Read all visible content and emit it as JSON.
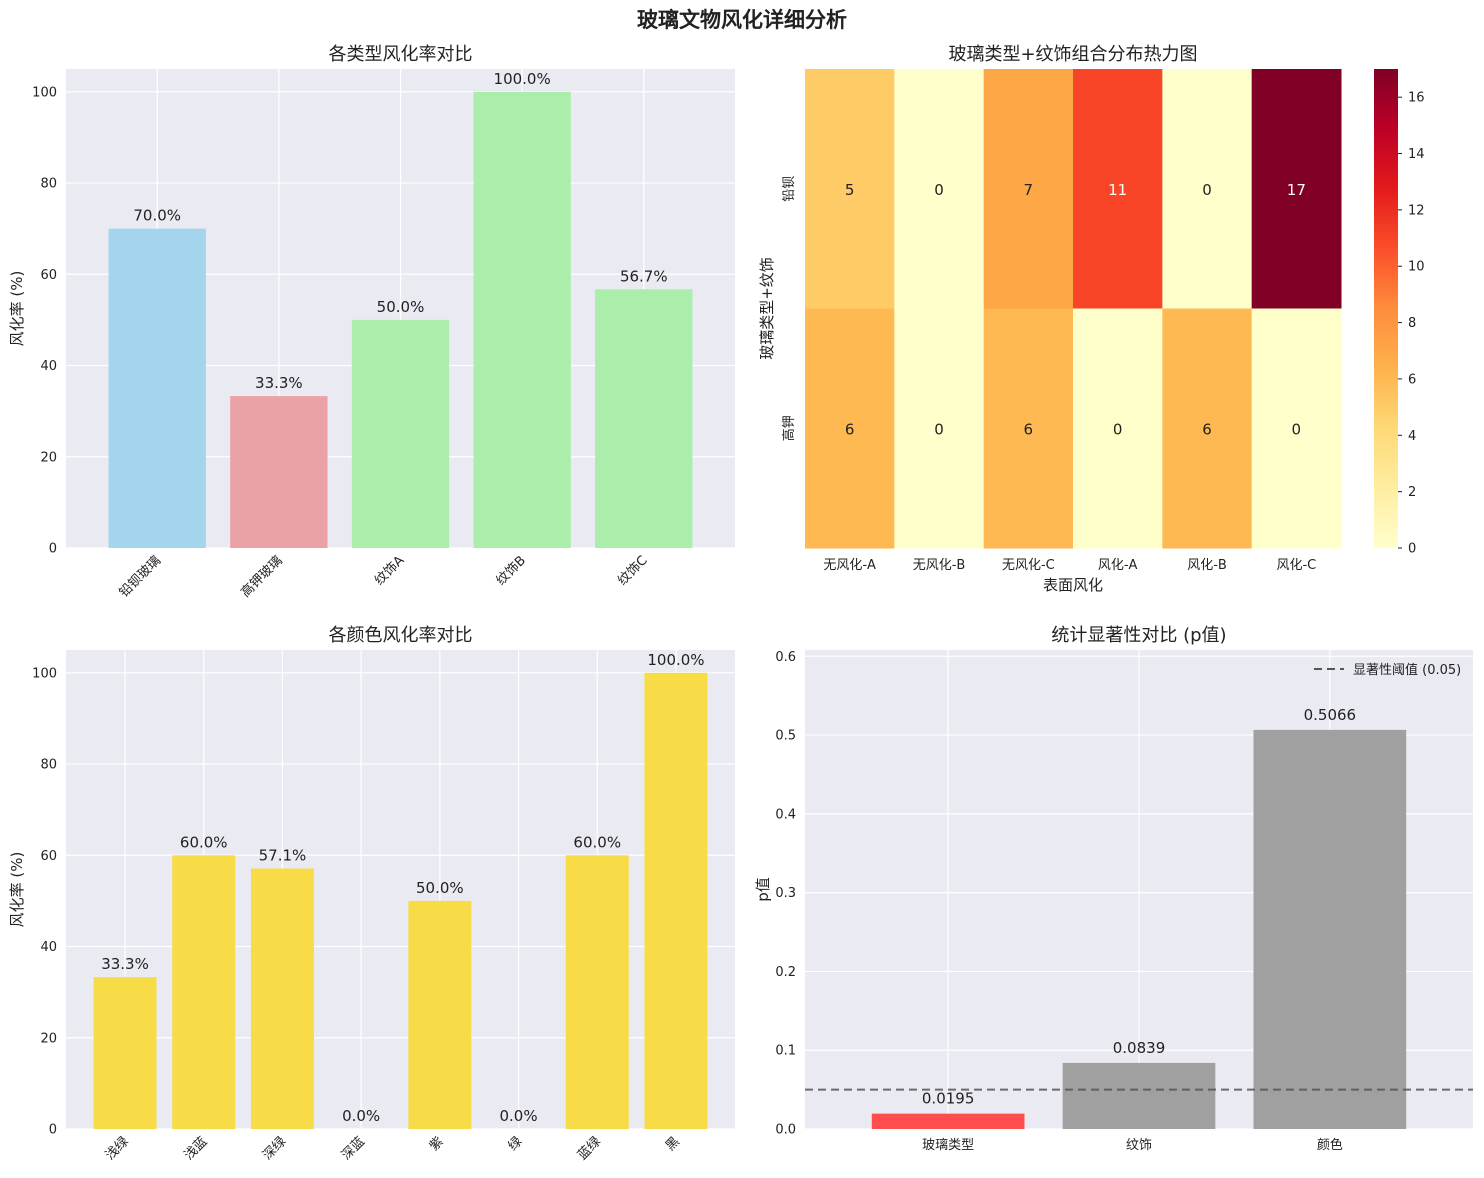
{
  "figure_title": "玻璃文物风化详细分析",
  "chart_data": [
    {
      "type": "bar",
      "title": "各类型风化率对比",
      "xlabel": "",
      "ylabel": "风化率 (%)",
      "categories": [
        "铅钡玻璃",
        "高钾玻璃",
        "纹饰A",
        "纹饰B",
        "纹饰C"
      ],
      "values": [
        70.0,
        33.3,
        50.0,
        100.0,
        56.7
      ],
      "labels": [
        "70.0%",
        "33.3%",
        "50.0%",
        "100.0%",
        "56.7%"
      ],
      "colors": [
        "#a4d5ec",
        "#eba2a6",
        "#abedab",
        "#abedab",
        "#abedab"
      ],
      "ylim": [
        0,
        105
      ],
      "yticks": [
        0,
        20,
        40,
        60,
        80,
        100
      ],
      "grid": true
    },
    {
      "type": "heatmap",
      "title": "玻璃类型+纹饰组合分布热力图",
      "xlabel": "表面风化",
      "ylabel": "玻璃类型+纹饰",
      "x_categories": [
        "无风化-A",
        "无风化-B",
        "无风化-C",
        "风化-A",
        "风化-B",
        "风化-C"
      ],
      "y_categories": [
        "铅钡",
        "高钾"
      ],
      "values": [
        [
          5,
          0,
          7,
          11,
          0,
          17
        ],
        [
          6,
          0,
          6,
          0,
          6,
          0
        ]
      ],
      "colorbar_range": [
        0,
        17
      ],
      "colorbar_ticks": [
        0,
        2,
        4,
        6,
        8,
        10,
        12,
        14,
        16
      ],
      "colormap": "YlOrRd"
    },
    {
      "type": "bar",
      "title": "各颜色风化率对比",
      "xlabel": "",
      "ylabel": "风化率 (%)",
      "categories": [
        "浅绿",
        "浅蓝",
        "深绿",
        "深蓝",
        "紫",
        "绿",
        "蓝绿",
        "黑"
      ],
      "values": [
        33.3,
        60.0,
        57.1,
        0.0,
        50.0,
        0.0,
        60.0,
        100.0
      ],
      "labels": [
        "33.3%",
        "60.0%",
        "57.1%",
        "0.0%",
        "50.0%",
        "0.0%",
        "60.0%",
        "100.0%"
      ],
      "color": "#f7dc47",
      "ylim": [
        0,
        105
      ],
      "yticks": [
        0,
        20,
        40,
        60,
        80,
        100
      ],
      "grid": true
    },
    {
      "type": "bar",
      "title": "统计显著性对比 (p值)",
      "xlabel": "",
      "ylabel": "p值",
      "categories": [
        "玻璃类型",
        "纹饰",
        "颜色"
      ],
      "values": [
        0.0195,
        0.0839,
        0.5066
      ],
      "labels": [
        "0.0195",
        "0.0839",
        "0.5066"
      ],
      "colors": [
        "#ff4d4d",
        "#a0a0a0",
        "#a0a0a0"
      ],
      "ylim": [
        0,
        0.608
      ],
      "yticks": [
        "0.0",
        "0.1",
        "0.2",
        "0.3",
        "0.4",
        "0.5",
        "0.6"
      ],
      "threshold": 0.05,
      "legend": "显著性阈值 (0.05)",
      "legend_position": "upper right",
      "grid": true
    }
  ]
}
